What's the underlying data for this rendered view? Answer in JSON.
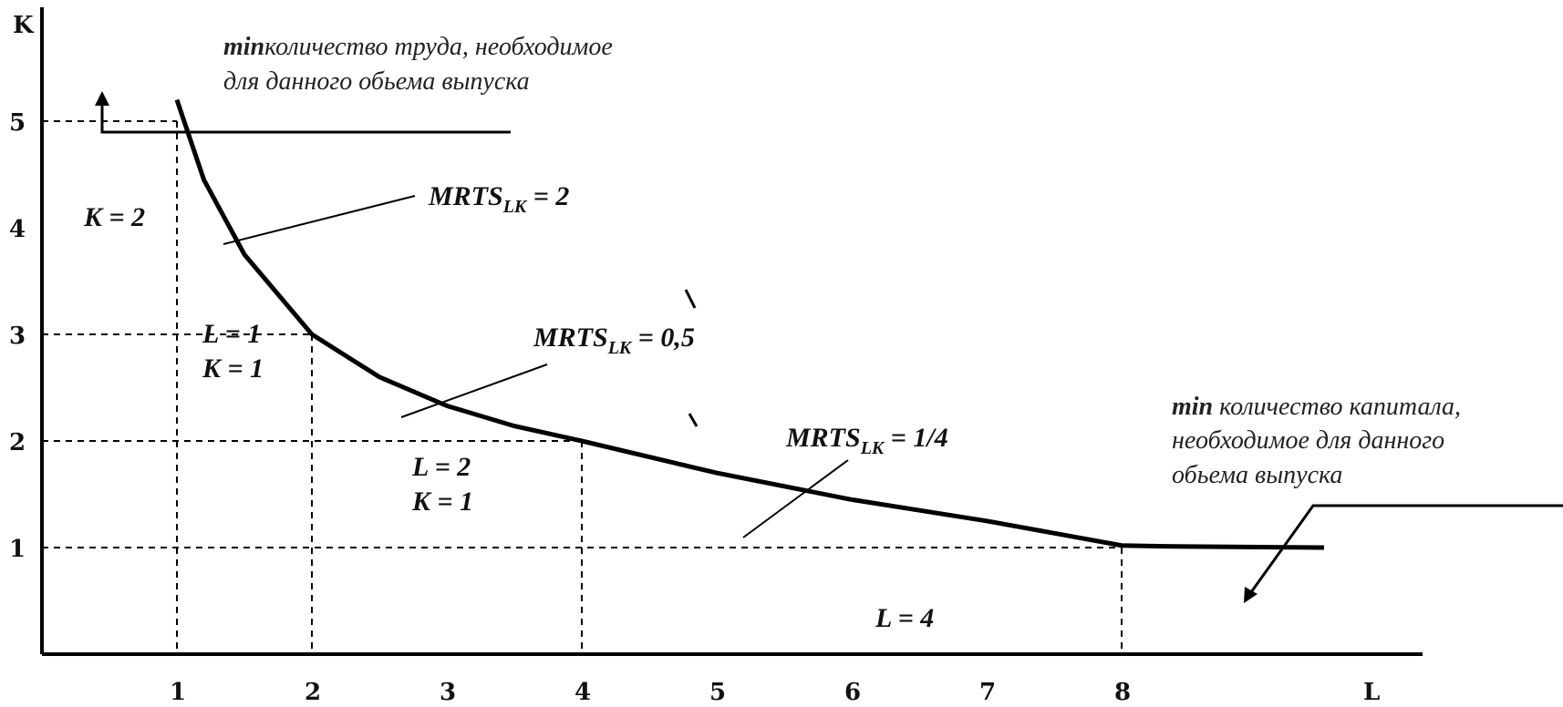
{
  "chart_data": {
    "type": "line",
    "xlabel": "L",
    "ylabel": "K",
    "xlim": [
      0,
      10.8
    ],
    "ylim": [
      0,
      5.4
    ],
    "x_ticks": [
      "1",
      "2",
      "3",
      "4",
      "5",
      "6",
      "7",
      "8"
    ],
    "y_ticks": [
      "1",
      "2",
      "3",
      "4",
      "5"
    ],
    "series": [
      {
        "x": [
          1,
          1.2,
          1.5,
          2,
          2.5,
          3,
          3.5,
          4,
          5,
          6,
          7,
          8,
          8.4,
          9.5
        ],
        "y": [
          5.2,
          4.45,
          3.75,
          3,
          2.6,
          2.33,
          2.14,
          2,
          1.7,
          1.45,
          1.25,
          1.02,
          1.01,
          1.0
        ]
      }
    ],
    "reference_points": [
      {
        "x": 1,
        "y": 5
      },
      {
        "x": 2,
        "y": 3
      },
      {
        "x": 4,
        "y": 2
      },
      {
        "x": 8,
        "y": 1
      }
    ],
    "annotations": {
      "top_note": {
        "bold": "min",
        "line1": "количество труда, необходимое",
        "line2": "для данного обьема выпуска"
      },
      "right_note": {
        "bold": "min",
        "line1": " количество капитала,",
        "line2": "необходимое для данного",
        "line3": "обьема выпуска"
      },
      "mrts1": {
        "main": "MRTS",
        "sub": "LK",
        "rest": " = 2"
      },
      "mrts2": {
        "main": "MRTS",
        "sub": "LK",
        "rest": " = 0,5"
      },
      "mrts3": {
        "main": "MRTS",
        "sub": "LK",
        "rest": " = 1/4"
      },
      "k2": "K = 2",
      "l1": "L = 1",
      "k1a": "K = 1",
      "l2": "L = 2",
      "k1b": "K = 1",
      "l4": "L = 4"
    }
  }
}
